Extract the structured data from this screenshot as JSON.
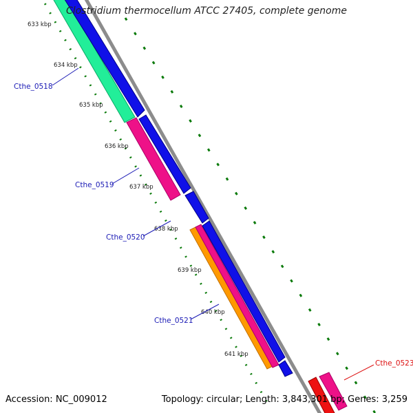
{
  "title": "Clostridium thermocellum ATCC 27405, complete genome",
  "footer": {
    "accession": "Accession: NC_009012",
    "summary": "Topology: circular; Length: 3,843,301 bp; Genes: 3,259"
  },
  "ticks": [
    "633 kbp",
    "634 kbp",
    "635 kbp",
    "636 kbp",
    "637 kbp",
    "638 kbp",
    "639 kbp",
    "640 kbp",
    "641 kbp"
  ],
  "genes": [
    {
      "label": "Cthe_0518",
      "color": "#1a1ab5"
    },
    {
      "label": "Cthe_0519",
      "color": "#1a1ab5"
    },
    {
      "label": "Cthe_0520",
      "color": "#1a1ab5"
    },
    {
      "label": "Cthe_0521",
      "color": "#1a1ab5"
    },
    {
      "label": "Cthe_0523",
      "color": "#dd1111"
    }
  ],
  "colors": {
    "cds_forward": "#1010e8",
    "green_feature": "#22ee99",
    "pink_feature": "#ee1188",
    "orange_feature": "#ff9900",
    "red_feature": "#ee1111",
    "backbone": "#8c8c8c",
    "gc_skew": "#0a7a0a"
  }
}
